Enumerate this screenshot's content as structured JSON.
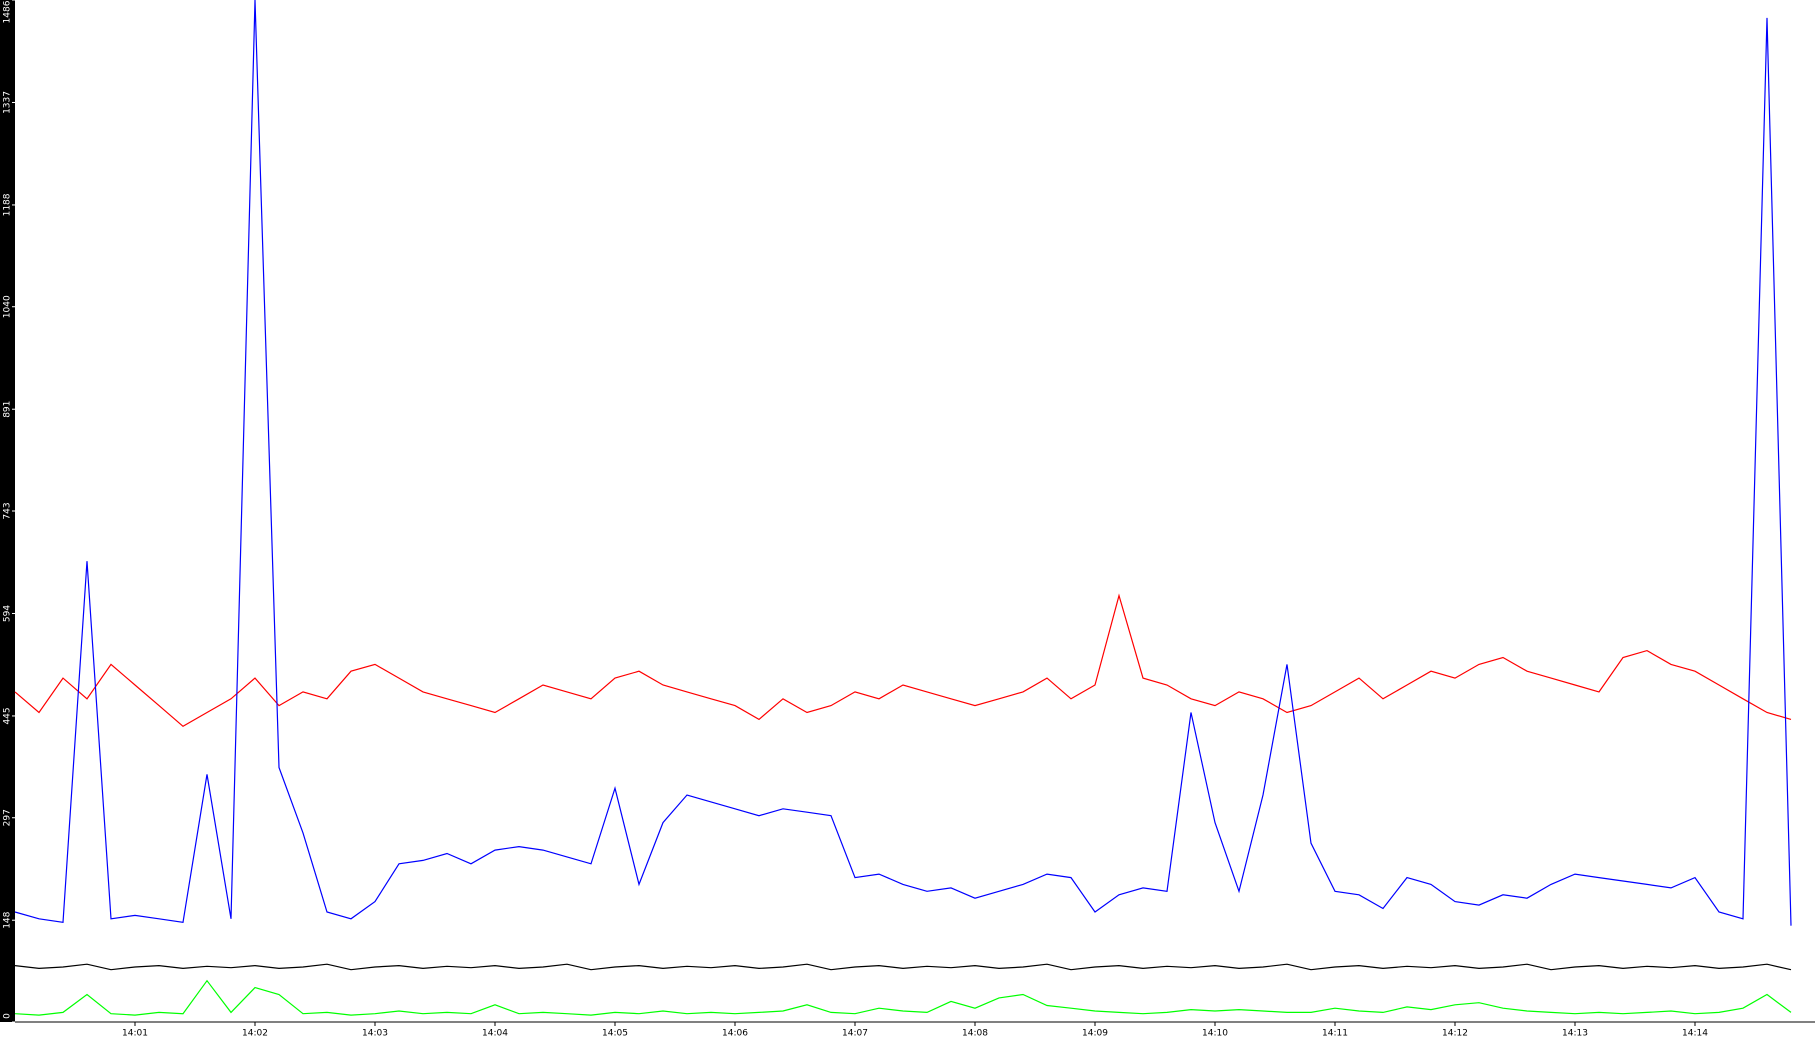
{
  "chart_data": {
    "type": "line",
    "x": [
      0,
      0.2,
      0.4,
      0.6,
      0.8,
      1,
      1.2,
      1.4,
      1.6,
      1.8,
      2,
      2.2,
      2.4,
      2.6,
      2.8,
      3,
      3.2,
      3.4,
      3.6,
      3.8,
      4,
      4.2,
      4.4,
      4.6,
      4.8,
      5,
      5.2,
      5.4,
      5.6,
      5.8,
      6,
      6.2,
      6.4,
      6.6,
      6.8,
      7,
      7.2,
      7.4,
      7.6,
      7.8,
      8,
      8.2,
      8.4,
      8.6,
      8.8,
      9,
      9.2,
      9.4,
      9.6,
      9.8,
      10,
      10.2,
      10.4,
      10.6,
      10.8,
      11,
      11.2,
      11.4,
      11.6,
      11.8,
      12,
      12.2,
      12.4,
      12.6,
      12.8,
      13,
      13.2,
      13.4,
      13.6,
      13.8,
      14,
      14.2,
      14.4,
      14.6,
      14.8
    ],
    "series": [
      {
        "color": "#ff0000",
        "values": [
          480,
          450,
          500,
          470,
          520,
          490,
          460,
          430,
          450,
          470,
          500,
          460,
          480,
          470,
          510,
          520,
          500,
          480,
          470,
          460,
          450,
          470,
          490,
          480,
          470,
          500,
          510,
          490,
          480,
          470,
          460,
          440,
          470,
          450,
          460,
          480,
          470,
          490,
          480,
          470,
          460,
          470,
          480,
          500,
          470,
          490,
          620,
          500,
          490,
          470,
          460,
          480,
          470,
          450,
          460,
          480,
          500,
          470,
          490,
          510,
          500,
          520,
          530,
          510,
          500,
          490,
          480,
          530,
          540,
          520,
          510,
          490,
          470,
          450,
          440
        ]
      },
      {
        "color": "#0000ff",
        "values": [
          160,
          150,
          145,
          670,
          150,
          155,
          150,
          145,
          360,
          150,
          1486,
          370,
          275,
          160,
          150,
          175,
          230,
          235,
          245,
          230,
          250,
          255,
          250,
          240,
          230,
          340,
          200,
          290,
          330,
          320,
          310,
          300,
          310,
          305,
          300,
          210,
          215,
          200,
          190,
          195,
          180,
          190,
          200,
          215,
          210,
          160,
          185,
          195,
          190,
          450,
          290,
          190,
          330,
          520,
          260,
          190,
          185,
          165,
          210,
          200,
          175,
          170,
          185,
          180,
          200,
          215,
          210,
          205,
          200,
          195,
          210,
          160,
          150,
          1460,
          140
        ]
      },
      {
        "color": "#000000",
        "values": [
          82,
          78,
          80,
          84,
          76,
          80,
          82,
          78,
          81,
          79,
          82,
          78,
          80,
          84,
          76,
          80,
          82,
          78,
          81,
          79,
          82,
          78,
          80,
          84,
          76,
          80,
          82,
          78,
          81,
          79,
          82,
          78,
          80,
          84,
          76,
          80,
          82,
          78,
          81,
          79,
          82,
          78,
          80,
          84,
          76,
          80,
          82,
          78,
          81,
          79,
          82,
          78,
          80,
          84,
          76,
          80,
          82,
          78,
          81,
          79,
          82,
          78,
          80,
          84,
          76,
          80,
          82,
          78,
          81,
          79,
          82,
          78,
          80,
          84,
          76
        ]
      },
      {
        "color": "#00ff00",
        "values": [
          12,
          10,
          14,
          40,
          12,
          10,
          14,
          12,
          60,
          14,
          50,
          40,
          12,
          14,
          10,
          12,
          16,
          12,
          14,
          12,
          25,
          12,
          14,
          12,
          10,
          14,
          12,
          16,
          12,
          14,
          12,
          14,
          16,
          25,
          14,
          12,
          20,
          16,
          14,
          30,
          20,
          35,
          40,
          24,
          20,
          16,
          14,
          12,
          14,
          18,
          16,
          18,
          16,
          14,
          14,
          20,
          16,
          14,
          22,
          18,
          25,
          28,
          20,
          16,
          14,
          12,
          14,
          12,
          14,
          16,
          12,
          14,
          20,
          40,
          14
        ]
      }
    ],
    "xlim": [
      0,
      15
    ],
    "xticks": [
      {
        "value": 1,
        "label": "14:01"
      },
      {
        "value": 2,
        "label": "14:02"
      },
      {
        "value": 3,
        "label": "14:03"
      },
      {
        "value": 4,
        "label": "14:04"
      },
      {
        "value": 5,
        "label": "14:05"
      },
      {
        "value": 6,
        "label": "14:06"
      },
      {
        "value": 7,
        "label": "14:07"
      },
      {
        "value": 8,
        "label": "14:08"
      },
      {
        "value": 9,
        "label": "14:09"
      },
      {
        "value": 10,
        "label": "14:10"
      },
      {
        "value": 11,
        "label": "14:11"
      },
      {
        "value": 12,
        "label": "14:12"
      },
      {
        "value": 13,
        "label": "14:13"
      },
      {
        "value": 14,
        "label": "14:14"
      }
    ],
    "ylim": [
      0,
      1486
    ],
    "yticks": [
      0,
      148,
      297,
      445,
      594,
      743,
      891,
      1040,
      1188,
      1337,
      1486
    ]
  }
}
